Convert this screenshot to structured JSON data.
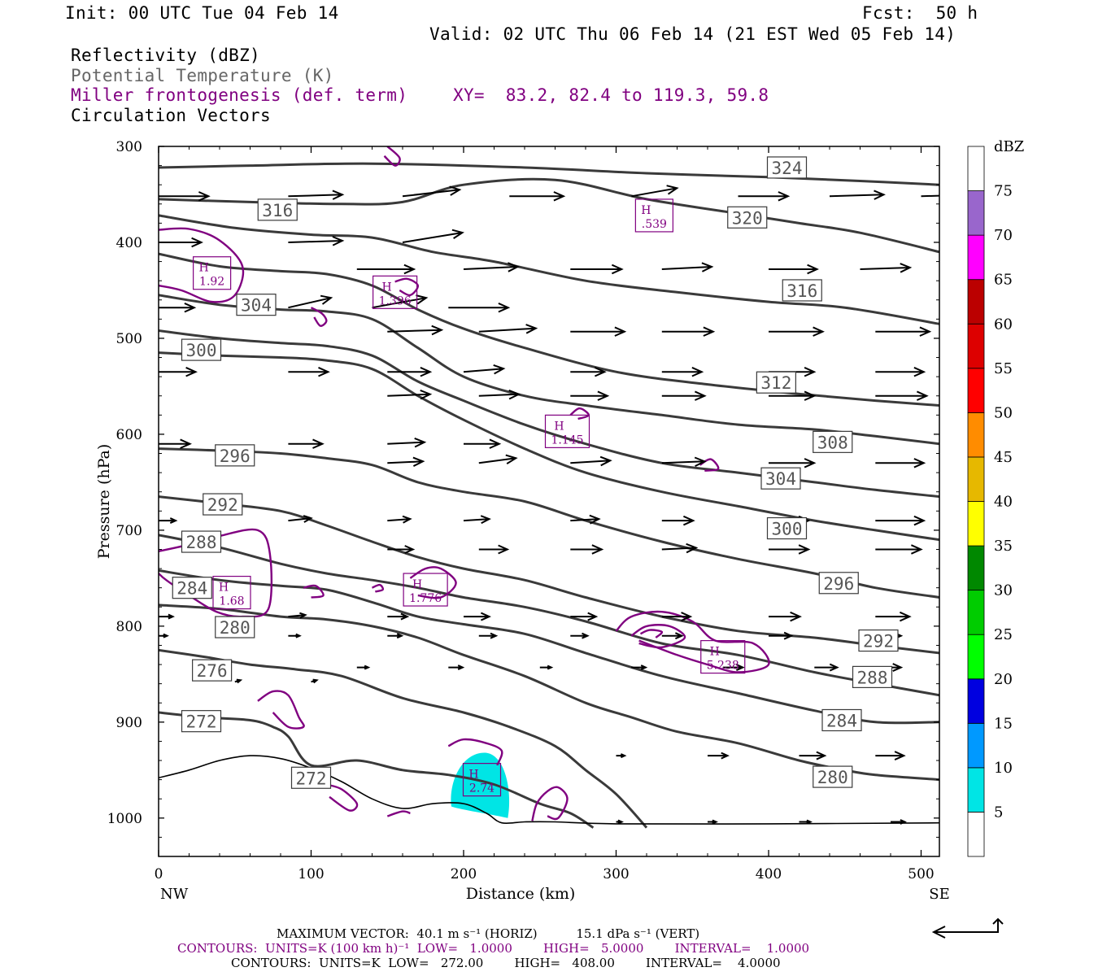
{
  "header": {
    "init": "Init: 00 UTC Tue 04 Feb 14",
    "fcst": "Fcst:  50 h",
    "valid": "Valid: 02 UTC Thu 06 Feb 14 (21 EST Wed 05 Feb 14)",
    "fields": [
      "Reflectivity (dBZ)",
      "Potential Temperature (K)",
      "Miller frontogenesis (def. term)",
      "Circulation Vectors"
    ],
    "xy": "XY=  83.2, 82.4 to 119.3, 59.8"
  },
  "colors": {
    "theta": "#3a3a3a",
    "frontogenesis": "#800080",
    "reflectivity_fill": "#00e5e5",
    "vector": "#000000"
  },
  "chart_data": {
    "type": "cross-section",
    "xlabel": "Distance (km)",
    "ylabel": "Pressure (hPa)",
    "xlim": [
      0,
      512
    ],
    "ylim": [
      1040,
      300
    ],
    "x_ticks": [
      0,
      100,
      200,
      300,
      400,
      500
    ],
    "y_ticks": [
      300,
      400,
      500,
      600,
      700,
      800,
      900,
      1000
    ],
    "x_end_labels": [
      "NW",
      "SE"
    ],
    "theta_contours": [
      {
        "level": 324,
        "x": [
          0,
          60,
          140,
          240,
          320,
          400,
          460,
          512
        ],
        "p": [
          322,
          320,
          318,
          322,
          328,
          332,
          336,
          340
        ]
      },
      {
        "level": 320,
        "x": [
          0,
          60,
          120,
          160,
          200,
          260,
          320,
          380,
          420,
          460,
          512
        ],
        "p": [
          355,
          358,
          360,
          358,
          340,
          335,
          355,
          370,
          380,
          390,
          410
        ]
      },
      {
        "level": 316,
        "x": [
          0,
          50,
          100,
          140,
          180,
          220,
          280,
          340,
          400,
          450,
          512
        ],
        "p": [
          372,
          385,
          392,
          395,
          410,
          420,
          440,
          452,
          462,
          468,
          485
        ]
      },
      {
        "level": 312,
        "x": [
          0,
          40,
          80,
          110,
          140,
          170,
          200,
          240,
          300,
          360,
          420,
          470,
          512
        ],
        "p": [
          412,
          425,
          430,
          433,
          445,
          470,
          490,
          510,
          535,
          548,
          558,
          565,
          570
        ]
      },
      {
        "level": 308,
        "x": [
          0,
          40,
          80,
          110,
          140,
          170,
          200,
          240,
          280,
          330,
          380,
          430,
          470,
          512
        ],
        "p": [
          455,
          465,
          470,
          472,
          480,
          510,
          540,
          560,
          570,
          580,
          590,
          595,
          602,
          610
        ]
      },
      {
        "level": 304,
        "x": [
          0,
          40,
          80,
          110,
          140,
          170,
          200,
          240,
          280,
          330,
          380,
          430,
          470,
          512
        ],
        "p": [
          492,
          500,
          505,
          508,
          518,
          545,
          565,
          590,
          610,
          630,
          640,
          650,
          658,
          665
        ]
      },
      {
        "level": 300,
        "x": [
          0,
          40,
          80,
          110,
          140,
          170,
          200,
          240,
          280,
          330,
          380,
          430,
          470,
          512
        ],
        "p": [
          515,
          518,
          520,
          523,
          532,
          560,
          585,
          615,
          640,
          660,
          675,
          690,
          700,
          710
        ]
      },
      {
        "level": 296,
        "x": [
          0,
          40,
          80,
          110,
          140,
          170,
          200,
          240,
          280,
          330,
          380,
          430,
          470,
          512
        ],
        "p": [
          615,
          617,
          620,
          625,
          632,
          650,
          660,
          670,
          690,
          712,
          730,
          745,
          760,
          770
        ]
      },
      {
        "level": 292,
        "x": [
          0,
          40,
          80,
          110,
          140,
          170,
          200,
          240,
          280,
          330,
          380,
          430,
          470,
          512
        ],
        "p": [
          665,
          672,
          680,
          695,
          712,
          728,
          740,
          752,
          770,
          790,
          805,
          812,
          820,
          828
        ]
      },
      {
        "level": 288,
        "x": [
          0,
          40,
          80,
          110,
          140,
          170,
          200,
          240,
          280,
          330,
          380,
          430,
          470,
          512
        ],
        "p": [
          705,
          718,
          735,
          745,
          752,
          760,
          770,
          780,
          795,
          818,
          830,
          848,
          860,
          872
        ]
      },
      {
        "level": 284,
        "x": [
          0,
          40,
          80,
          110,
          140,
          170,
          200,
          240,
          280,
          330,
          380,
          430,
          470,
          512
        ],
        "p": [
          742,
          752,
          758,
          762,
          775,
          790,
          798,
          808,
          828,
          852,
          870,
          888,
          900,
          900
        ]
      },
      {
        "level": 280,
        "x": [
          0,
          40,
          80,
          110,
          140,
          170,
          200,
          240,
          280,
          310,
          340,
          380,
          420,
          450,
          470,
          512
        ],
        "p": [
          778,
          782,
          790,
          793,
          800,
          812,
          830,
          852,
          880,
          895,
          910,
          922,
          940,
          950,
          955,
          960
        ]
      },
      {
        "level": 276,
        "x": [
          0,
          30,
          60,
          90,
          120,
          160,
          200,
          230,
          260,
          280,
          300,
          320
        ],
        "p": [
          825,
          832,
          840,
          845,
          852,
          875,
          890,
          905,
          925,
          950,
          975,
          1010
        ]
      },
      {
        "level": 272,
        "x": [
          0,
          30,
          60,
          75,
          85,
          100,
          130,
          160,
          190,
          220,
          250,
          270,
          285
        ],
        "p": [
          890,
          895,
          898,
          905,
          915,
          945,
          940,
          950,
          955,
          965,
          985,
          995,
          1010
        ]
      }
    ],
    "theta_label_positions": [
      {
        "level": 324,
        "x": 412,
        "p": 322
      },
      {
        "level": 320,
        "x": 386,
        "p": 374
      },
      {
        "level": 316,
        "x": 422,
        "p": 450
      },
      {
        "level": 316,
        "x": 78,
        "p": 366
      },
      {
        "level": 312,
        "x": 405,
        "p": 546
      },
      {
        "level": 308,
        "x": 442,
        "p": 608
      },
      {
        "level": 304,
        "x": 408,
        "p": 646
      },
      {
        "level": 304,
        "x": 64,
        "p": 465
      },
      {
        "level": 300,
        "x": 412,
        "p": 698
      },
      {
        "level": 300,
        "x": 28,
        "p": 512
      },
      {
        "level": 296,
        "x": 446,
        "p": 755
      },
      {
        "level": 296,
        "x": 50,
        "p": 622
      },
      {
        "level": 292,
        "x": 472,
        "p": 815
      },
      {
        "level": 292,
        "x": 42,
        "p": 673
      },
      {
        "level": 288,
        "x": 468,
        "p": 853
      },
      {
        "level": 288,
        "x": 28,
        "p": 712
      },
      {
        "level": 284,
        "x": 448,
        "p": 898
      },
      {
        "level": 284,
        "x": 22,
        "p": 760
      },
      {
        "level": 280,
        "x": 442,
        "p": 957
      },
      {
        "level": 280,
        "x": 50,
        "p": 801
      },
      {
        "level": 276,
        "x": 35,
        "p": 846
      },
      {
        "level": 272,
        "x": 28,
        "p": 899
      },
      {
        "level": 272,
        "x": 100,
        "p": 958
      }
    ],
    "terrain": {
      "x": [
        0,
        20,
        40,
        60,
        80,
        100,
        120,
        140,
        160,
        180,
        200,
        215,
        225,
        240,
        260,
        300,
        400,
        512
      ],
      "p": [
        958,
        950,
        940,
        935,
        938,
        948,
        962,
        980,
        990,
        985,
        985,
        995,
        1005,
        1004,
        1004,
        1006,
        1006,
        1005
      ]
    },
    "frontogenesis_maxima": [
      {
        "label": "H",
        "value": "1.92",
        "x": 35,
        "p": 432
      },
      {
        "label": "H",
        "value": "1.396",
        "x": 155,
        "p": 452
      },
      {
        "label": "H",
        "value": ".539",
        "x": 325,
        "p": 372
      },
      {
        "label": "H",
        "value": "1.145",
        "x": 268,
        "p": 597
      },
      {
        "label": "H",
        "value": "1.68",
        "x": 48,
        "p": 765
      },
      {
        "label": "H",
        "value": "1.776",
        "x": 175,
        "p": 762
      },
      {
        "label": "H",
        "value": "5.238",
        "x": 370,
        "p": 832
      },
      {
        "label": "H",
        "value": "2.74",
        "x": 212,
        "p": 960
      }
    ],
    "reflectivity_colorbar": {
      "label": "dBZ",
      "levels": [
        5,
        10,
        15,
        20,
        25,
        30,
        35,
        40,
        45,
        50,
        55,
        60,
        65,
        70,
        75
      ],
      "colors": [
        "#00e5e5",
        "#0099ff",
        "#0000e0",
        "#00ff00",
        "#00cc00",
        "#008800",
        "#ffff00",
        "#e6b800",
        "#ff8c00",
        "#ff0000",
        "#dd0000",
        "#bb0000",
        "#ff00ff",
        "#9966cc",
        "#ffffff"
      ]
    },
    "vector_rows": [
      {
        "p": 352,
        "x": [
          0,
          85,
          160,
          230,
          310,
          380,
          440,
          500
        ],
        "u": [
          35,
          38,
          40,
          38,
          32,
          35,
          38,
          36
        ],
        "w": [
          0,
          -2,
          -8,
          0,
          -10,
          0,
          -2,
          -2
        ]
      },
      {
        "p": 400,
        "x": [
          0,
          85,
          160
        ],
        "u": [
          30,
          38,
          42
        ],
        "w": [
          0,
          -2,
          -12
        ]
      },
      {
        "p": 428,
        "x": [
          130,
          200,
          270,
          330,
          400,
          460
        ],
        "u": [
          40,
          38,
          36,
          35,
          34,
          35
        ],
        "w": [
          0,
          -3,
          0,
          -3,
          0,
          -2
        ]
      },
      {
        "p": 468,
        "x": [
          0,
          85,
          140,
          190
        ],
        "u": [
          25,
          30,
          38,
          42
        ],
        "w": [
          0,
          -12,
          -12,
          0
        ]
      },
      {
        "p": 493,
        "x": [
          150,
          210,
          270,
          330,
          400,
          470
        ],
        "u": [
          38,
          40,
          38,
          36,
          38,
          38
        ],
        "w": [
          -2,
          -4,
          0,
          0,
          0,
          0
        ]
      },
      {
        "p": 535,
        "x": [
          0,
          85,
          150,
          200,
          270,
          330,
          400,
          470
        ],
        "u": [
          26,
          28,
          30,
          28,
          24,
          28,
          32,
          34
        ],
        "w": [
          0,
          0,
          0,
          -4,
          0,
          0,
          0,
          0
        ]
      },
      {
        "p": 560,
        "x": [
          150,
          210,
          270,
          330,
          400,
          470
        ],
        "u": [
          30,
          28,
          26,
          30,
          32,
          36
        ],
        "w": [
          -2,
          -2,
          0,
          0,
          0,
          0
        ]
      },
      {
        "p": 610,
        "x": [
          0,
          85,
          150,
          200
        ],
        "u": [
          22,
          24,
          26,
          25
        ],
        "w": [
          0,
          0,
          -2,
          0
        ]
      },
      {
        "p": 630,
        "x": [
          150,
          210,
          270,
          330,
          400,
          470
        ],
        "u": [
          25,
          26,
          28,
          30,
          32,
          34
        ],
        "w": [
          -2,
          -6,
          -3,
          -2,
          0,
          0
        ]
      },
      {
        "p": 690,
        "x": [
          0,
          85,
          150,
          200,
          270,
          330,
          400,
          470
        ],
        "u": [
          12,
          16,
          16,
          18,
          20,
          22,
          28,
          34
        ],
        "w": [
          0,
          -3,
          -2,
          -2,
          -2,
          0,
          0,
          0
        ]
      },
      {
        "p": 720,
        "x": [
          150,
          210,
          270,
          330,
          400,
          470
        ],
        "u": [
          18,
          20,
          22,
          24,
          28,
          32
        ],
        "w": [
          0,
          0,
          0,
          -2,
          0,
          0
        ]
      },
      {
        "p": 790,
        "x": [
          0,
          85,
          150,
          200,
          270,
          330,
          400,
          470
        ],
        "u": [
          10,
          12,
          14,
          18,
          18,
          20,
          22,
          24
        ],
        "w": [
          0,
          -2,
          0,
          0,
          0,
          0,
          0,
          0
        ]
      },
      {
        "p": 810,
        "x": [
          0,
          85,
          150,
          210,
          270,
          330,
          400,
          470
        ],
        "u": [
          6,
          8,
          10,
          12,
          12,
          14,
          16,
          18
        ],
        "w": [
          0,
          0,
          0,
          0,
          0,
          0,
          0,
          0
        ]
      },
      {
        "p": 843,
        "x": [
          130,
          190,
          250,
          310,
          370,
          430,
          470
        ],
        "u": [
          8,
          10,
          8,
          10,
          14,
          16,
          18
        ],
        "w": [
          0,
          0,
          0,
          0,
          0,
          0,
          0
        ]
      },
      {
        "p": 858,
        "x": [
          50,
          100
        ],
        "u": [
          4,
          4
        ],
        "w": [
          -2,
          -2
        ]
      },
      {
        "p": 935,
        "x": [
          300,
          360,
          420,
          470
        ],
        "u": [
          6,
          14,
          18,
          20
        ],
        "w": [
          0,
          0,
          0,
          0
        ]
      },
      {
        "p": 1004,
        "x": [
          300,
          360,
          420,
          480
        ],
        "u": [
          4,
          6,
          8,
          10
        ],
        "w": [
          0,
          0,
          0,
          0
        ]
      }
    ]
  },
  "footer": {
    "max_vector": "MAXIMUM VECTOR:  40.1 m s⁻¹ (HORIZ)          15.1 dPa s⁻¹ (VERT)",
    "contours_purple": "CONTOURS:  UNITS=K (100 km h)⁻¹  LOW=   1.0000        HIGH=   5.0000        INTERVAL=    1.0000",
    "contours_black": "CONTOURS:  UNITS=K  LOW=   272.00        HIGH=   408.00        INTERVAL=    4.0000"
  }
}
